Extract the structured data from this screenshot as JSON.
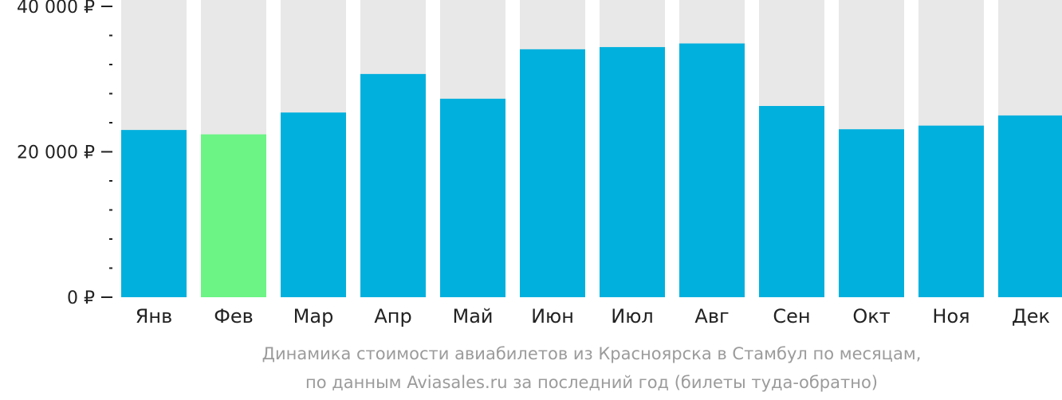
{
  "chart_data": {
    "type": "bar",
    "categories": [
      "Янв",
      "Фев",
      "Мар",
      "Апр",
      "Май",
      "Июн",
      "Июл",
      "Авг",
      "Сен",
      "Окт",
      "Ноя",
      "Дек"
    ],
    "values": [
      23000,
      22400,
      25400,
      30700,
      27300,
      34100,
      34400,
      34900,
      26300,
      23100,
      23600,
      25000
    ],
    "ylim": [
      0,
      40000
    ],
    "yticks": [
      {
        "value": 0,
        "label": "0 ₽"
      },
      {
        "value": 20000,
        "label": "20 000 ₽"
      },
      {
        "value": 40000,
        "label": "40 000 ₽"
      }
    ],
    "minor_tick_step": 4000,
    "highlight_index": 1,
    "colors": {
      "bar": "#02b0dd",
      "highlight": "#6cf485",
      "background_bar": "#e8e8e8",
      "axis": "#222222"
    },
    "grid": false,
    "legend": "none"
  },
  "caption": {
    "line1": "Динамика стоимости авиабилетов из Красноярска в Стамбул по месяцам,",
    "line2": "по данным Aviasales.ru за последний год (билеты туда-обратно)"
  }
}
